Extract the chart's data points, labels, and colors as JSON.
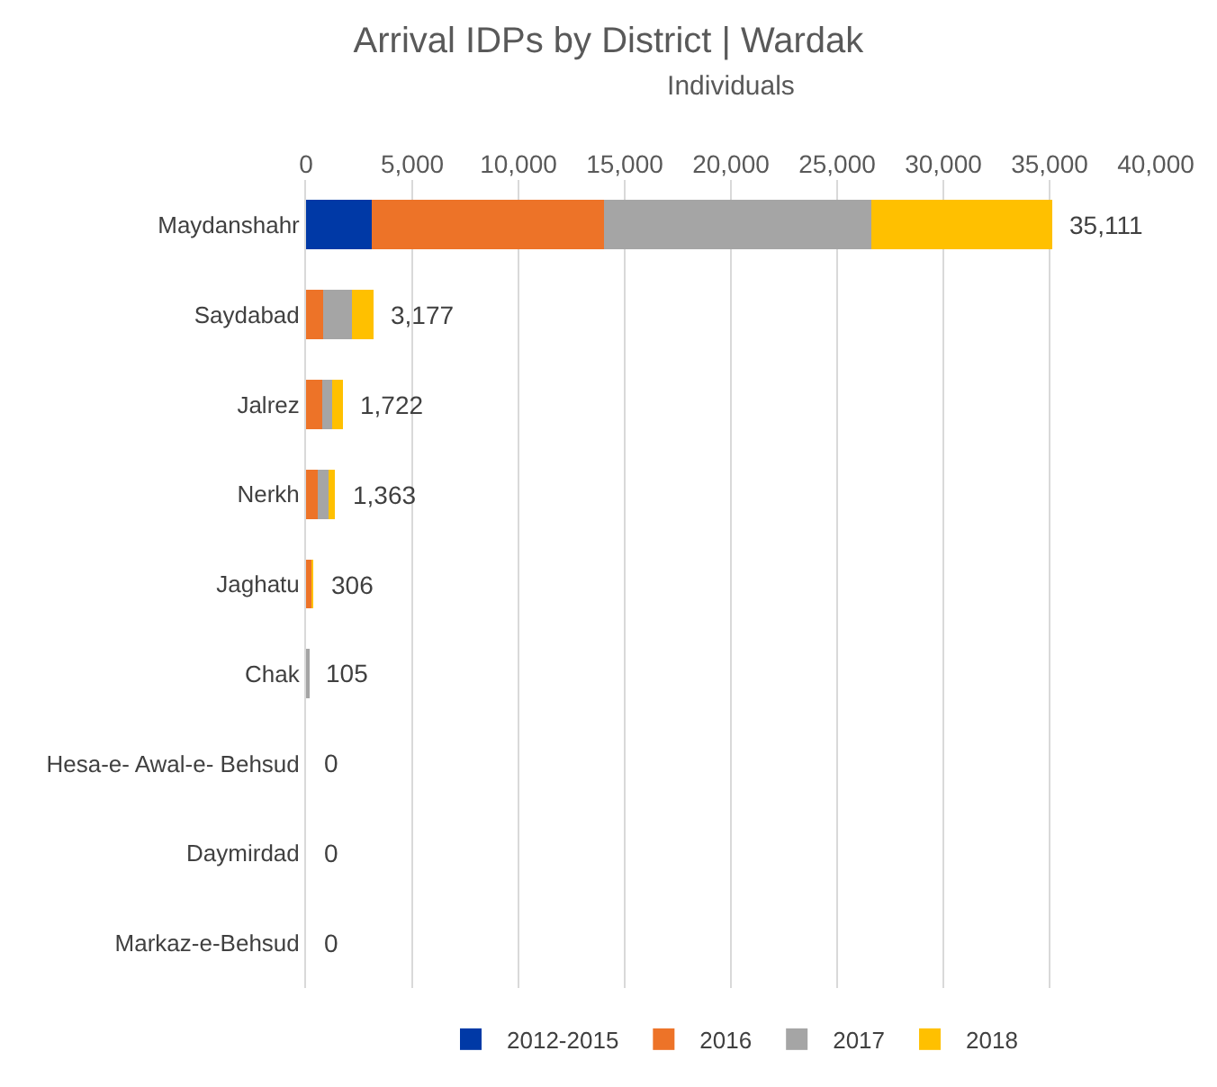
{
  "chart_data": {
    "type": "bar",
    "title": "Arrival IDPs by District | Wardak",
    "xlabel": "Individuals",
    "orientation": "horizontal",
    "stacked": true,
    "categories": [
      "Maydanshahr",
      "Saydabad",
      "Jalrez",
      "Nerkh",
      "Jaghatu",
      "Chak",
      "Hesa-e- Awal-e- Behsud",
      "Daymirdad",
      "Markaz-e-Behsud"
    ],
    "series": [
      {
        "name": "2012-2015",
        "color": "#0039a6",
        "values": [
          3100,
          0,
          0,
          0,
          0,
          0,
          0,
          0,
          0
        ]
      },
      {
        "name": "2016",
        "color": "#ed7328",
        "values": [
          10930,
          820,
          760,
          540,
          270,
          0,
          0,
          0,
          0
        ]
      },
      {
        "name": "2017",
        "color": "#a5a5a5",
        "values": [
          12570,
          1360,
          460,
          510,
          0,
          105,
          0,
          0,
          0
        ]
      },
      {
        "name": "2018",
        "color": "#ffc000",
        "values": [
          8511,
          997,
          502,
          313,
          36,
          0,
          0,
          0,
          0
        ]
      }
    ],
    "totals": [
      "35,111",
      "3,177",
      "1,722",
      "1,363",
      "306",
      "105",
      "0",
      "0",
      "0"
    ],
    "xlim": [
      0,
      40000
    ],
    "xticks": [
      {
        "value": 0,
        "label": "0"
      },
      {
        "value": 5000,
        "label": "5,000"
      },
      {
        "value": 10000,
        "label": "10,000"
      },
      {
        "value": 15000,
        "label": "15,000"
      },
      {
        "value": 20000,
        "label": "20,000"
      },
      {
        "value": 25000,
        "label": "25,000"
      },
      {
        "value": 30000,
        "label": "30,000"
      },
      {
        "value": 35000,
        "label": "35,000"
      },
      {
        "value": 40000,
        "label": "40,000"
      }
    ],
    "grid": "x",
    "legend": "bottom"
  }
}
